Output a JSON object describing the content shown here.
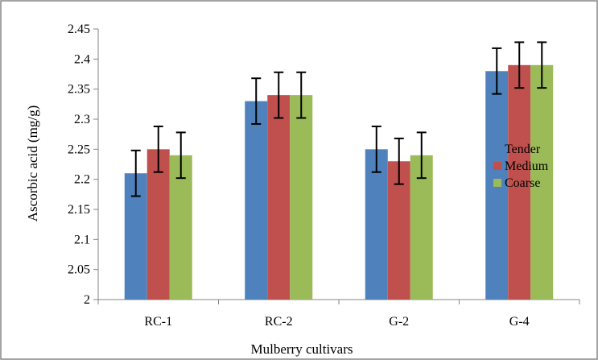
{
  "chart_data": {
    "type": "bar",
    "title": "",
    "xlabel": "Mulberry cultivars",
    "ylabel": "Ascorbic acid (mg/g)",
    "categories": [
      "RC-1",
      "RC-2",
      "G-2",
      "G-4"
    ],
    "series": [
      {
        "name": "Tender",
        "color": "#4F81BD",
        "values": [
          2.21,
          2.33,
          2.25,
          2.38
        ],
        "error": [
          0.038,
          0.038,
          0.038,
          0.038
        ]
      },
      {
        "name": "Medium",
        "color": "#C0504D",
        "values": [
          2.25,
          2.34,
          2.23,
          2.39
        ],
        "error": [
          0.038,
          0.038,
          0.038,
          0.038
        ]
      },
      {
        "name": "Coarse",
        "color": "#9BBB59",
        "values": [
          2.24,
          2.34,
          2.24,
          2.39
        ],
        "error": [
          0.038,
          0.038,
          0.038,
          0.038
        ]
      }
    ],
    "ylim": [
      2,
      2.45
    ],
    "yticks": [
      "2",
      "2.05",
      "2.1",
      "2.15",
      "2.2",
      "2.25",
      "2.3",
      "2.35",
      "2.4",
      "2.45"
    ],
    "grid": false,
    "legend": "right"
  }
}
